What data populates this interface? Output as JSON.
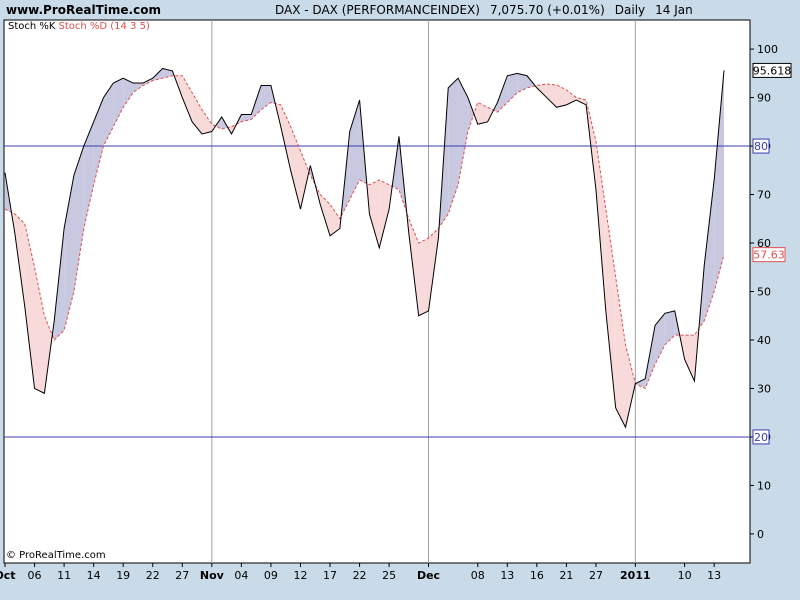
{
  "header": {
    "site": "www.ProRealTime.com",
    "instrument": "DAX - DAX (PERFORMANCEINDEX)",
    "price": "7,075.70 (+0.01%)",
    "period": "Daily",
    "date": "14 Jan"
  },
  "legend": {
    "k_label": "Stoch %K",
    "d_label": "Stoch %D (14 3 5)"
  },
  "copyright": "© ProRealTime.com",
  "colors": {
    "k_line": "#000000",
    "d_line": "#e05050",
    "fill_k_above": "#c8c8e0",
    "fill_d_above": "#f8dada",
    "level_line": "#3b3bb0",
    "background": "#ffffff",
    "frame": "#c9dbe8"
  },
  "chart_data": {
    "type": "line",
    "title": "DAX - DAX (PERFORMANCEINDEX)",
    "ylim": [
      -6,
      106
    ],
    "yticks": [
      0,
      10,
      20,
      30,
      40,
      50,
      60,
      70,
      80,
      90,
      100
    ],
    "levels": [
      {
        "value": 80,
        "label": "80"
      },
      {
        "value": 20,
        "label": "20"
      }
    ],
    "last_values": {
      "k": "95.618",
      "d": "57.63"
    },
    "x": [
      "Oct 1",
      "Oct 4",
      "Oct 5",
      "Oct 6",
      "Oct 7",
      "Oct 8",
      "Oct 11",
      "Oct 12",
      "Oct 13",
      "Oct 14",
      "Oct 15",
      "Oct 18",
      "Oct 19",
      "Oct 20",
      "Oct 21",
      "Oct 22",
      "Oct 25",
      "Oct 26",
      "Oct 27",
      "Oct 28",
      "Oct 29",
      "Nov 1",
      "Nov 2",
      "Nov 3",
      "Nov 4",
      "Nov 5",
      "Nov 8",
      "Nov 9",
      "Nov 10",
      "Nov 11",
      "Nov 12",
      "Nov 15",
      "Nov 16",
      "Nov 17",
      "Nov 18",
      "Nov 19",
      "Nov 22",
      "Nov 23",
      "Nov 24",
      "Nov 25",
      "Nov 26",
      "Nov 29",
      "Nov 30",
      "Dec 1",
      "Dec 2",
      "Dec 3",
      "Dec 6",
      "Dec 7",
      "Dec 8",
      "Dec 9",
      "Dec 10",
      "Dec 13",
      "Dec 14",
      "Dec 15",
      "Dec 16",
      "Dec 17",
      "Dec 20",
      "Dec 21",
      "Dec 22",
      "Dec 23",
      "Dec 27",
      "Dec 28",
      "Dec 29",
      "Dec 30",
      "Jan 3",
      "Jan 4",
      "Jan 5",
      "Jan 6",
      "Jan 7",
      "Jan 10",
      "Jan 11",
      "Jan 12",
      "Jan 13",
      "Jan 14"
    ],
    "series": [
      {
        "name": "Stoch %K",
        "values": [
          74.5,
          62,
          47,
          30,
          29,
          44,
          63,
          74,
          80,
          85,
          90,
          93,
          94,
          93,
          93,
          94,
          96,
          95.5,
          90,
          85,
          82.5,
          83,
          86,
          82.5,
          86.5,
          86.5,
          92.5,
          92.5,
          84,
          75,
          67,
          76,
          68,
          61.5,
          63,
          83,
          89.5,
          66,
          59,
          67,
          82,
          62,
          45,
          46,
          61,
          92,
          94,
          90,
          84.5,
          85,
          89,
          94.5,
          95,
          94.5,
          92,
          90,
          88,
          88.5,
          89.5,
          88.5,
          71,
          46,
          26,
          22,
          31,
          32,
          43,
          45.5,
          46,
          36,
          31.5,
          55.5,
          73,
          95.6
        ]
      },
      {
        "name": "Stoch %D (14 3 5)",
        "values": [
          67,
          66,
          64,
          55,
          45,
          40,
          42,
          50,
          63,
          72,
          80,
          84,
          88,
          91,
          92.5,
          93.5,
          94,
          94.5,
          94.5,
          91,
          87.5,
          84.5,
          83.5,
          84,
          85,
          85.5,
          87.5,
          89,
          88.5,
          84,
          79,
          74,
          70,
          68,
          65,
          69,
          73,
          72,
          73,
          72,
          71,
          65,
          60,
          61,
          63,
          66,
          72,
          83,
          89,
          88,
          87,
          89,
          91,
          92,
          92.5,
          92.8,
          92.6,
          91.6,
          90,
          89.5,
          81,
          67,
          53,
          39,
          31,
          30,
          35,
          39,
          41,
          41,
          41,
          44,
          50,
          57.6
        ]
      }
    ],
    "xtick_labels": [
      {
        "label": "Oct",
        "at": "Oct 1",
        "month": true
      },
      {
        "label": "06",
        "at": "Oct 6"
      },
      {
        "label": "11",
        "at": "Oct 11"
      },
      {
        "label": "14",
        "at": "Oct 14"
      },
      {
        "label": "19",
        "at": "Oct 19"
      },
      {
        "label": "22",
        "at": "Oct 22"
      },
      {
        "label": "27",
        "at": "Oct 27"
      },
      {
        "label": "Nov",
        "at": "Nov 1",
        "month": true
      },
      {
        "label": "04",
        "at": "Nov 4"
      },
      {
        "label": "09",
        "at": "Nov 9"
      },
      {
        "label": "12",
        "at": "Nov 12"
      },
      {
        "label": "17",
        "at": "Nov 17"
      },
      {
        "label": "22",
        "at": "Nov 22"
      },
      {
        "label": "25",
        "at": "Nov 25"
      },
      {
        "label": "Dec",
        "at": "Dec 1",
        "month": true
      },
      {
        "label": "08",
        "at": "Dec 8"
      },
      {
        "label": "13",
        "at": "Dec 13"
      },
      {
        "label": "16",
        "at": "Dec 16"
      },
      {
        "label": "21",
        "at": "Dec 21"
      },
      {
        "label": "27",
        "at": "Dec 27"
      },
      {
        "label": "2011",
        "at": "Jan 3",
        "month": true
      },
      {
        "label": "10",
        "at": "Jan 10"
      },
      {
        "label": "13",
        "at": "Jan 13"
      }
    ],
    "vgrid": [
      "Nov 1",
      "Dec 1",
      "Jan 3"
    ]
  }
}
